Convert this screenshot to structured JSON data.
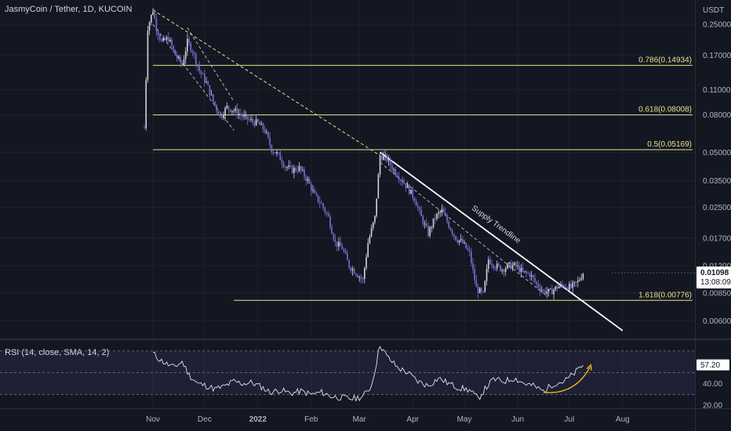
{
  "header": {
    "title": "JasmyCoin / Tether, 1D, KUCOIN"
  },
  "chart_data": {
    "type": "candlestick",
    "currency_label": "USDT",
    "y_scale": "log",
    "ylim": [
      0.0048,
      0.34
    ],
    "y_ticks": [
      "0.25000",
      "0.17000",
      "0.11000",
      "0.08000",
      "0.05000",
      "0.03500",
      "0.02500",
      "0.01700",
      "0.01200",
      "0.00850",
      "0.00600"
    ],
    "x_ticks": [
      "Nov",
      "Dec",
      "2022",
      "Feb",
      "Mar",
      "Apr",
      "May",
      "Jun",
      "Jul",
      "Aug"
    ],
    "x_tick_dates": [
      "2021-11-01",
      "2021-12-01",
      "2022-01-01",
      "2022-02-01",
      "2022-03-01",
      "2022-04-01",
      "2022-05-01",
      "2022-06-01",
      "2022-07-01",
      "2022-08-01"
    ],
    "path": [
      [
        "2021-10-27",
        0.068
      ],
      [
        "2021-10-29",
        0.24
      ],
      [
        "2021-11-01",
        0.3
      ],
      [
        "2021-11-03",
        0.24
      ],
      [
        "2021-11-06",
        0.2
      ],
      [
        "2021-11-10",
        0.21
      ],
      [
        "2021-11-14",
        0.17
      ],
      [
        "2021-11-18",
        0.15
      ],
      [
        "2021-11-21",
        0.2
      ],
      [
        "2021-11-24",
        0.18
      ],
      [
        "2021-11-28",
        0.14
      ],
      [
        "2021-12-02",
        0.12
      ],
      [
        "2021-12-06",
        0.095
      ],
      [
        "2021-12-10",
        0.078
      ],
      [
        "2021-12-14",
        0.088
      ],
      [
        "2021-12-18",
        0.085
      ],
      [
        "2021-12-22",
        0.08
      ],
      [
        "2021-12-27",
        0.075
      ],
      [
        "2022-01-01",
        0.072
      ],
      [
        "2022-01-05",
        0.066
      ],
      [
        "2022-01-09",
        0.052
      ],
      [
        "2022-01-13",
        0.048
      ],
      [
        "2022-01-17",
        0.042
      ],
      [
        "2022-01-21",
        0.04
      ],
      [
        "2022-01-25",
        0.041
      ],
      [
        "2022-01-30",
        0.035
      ],
      [
        "2022-02-03",
        0.029
      ],
      [
        "2022-02-07",
        0.026
      ],
      [
        "2022-02-11",
        0.022
      ],
      [
        "2022-02-15",
        0.016
      ],
      [
        "2022-02-19",
        0.015
      ],
      [
        "2022-02-23",
        0.012
      ],
      [
        "2022-02-27",
        0.011
      ],
      [
        "2022-03-03",
        0.01
      ],
      [
        "2022-03-06",
        0.016
      ],
      [
        "2022-03-10",
        0.022
      ],
      [
        "2022-03-13",
        0.048
      ],
      [
        "2022-03-17",
        0.046
      ],
      [
        "2022-03-21",
        0.04
      ],
      [
        "2022-03-25",
        0.036
      ],
      [
        "2022-03-29",
        0.032
      ],
      [
        "2022-04-02",
        0.028
      ],
      [
        "2022-04-06",
        0.022
      ],
      [
        "2022-04-10",
        0.018
      ],
      [
        "2022-04-14",
        0.022
      ],
      [
        "2022-04-18",
        0.024
      ],
      [
        "2022-04-22",
        0.02
      ],
      [
        "2022-04-26",
        0.017
      ],
      [
        "2022-04-30",
        0.016
      ],
      [
        "2022-05-04",
        0.014
      ],
      [
        "2022-05-08",
        0.009
      ],
      [
        "2022-05-12",
        0.0083
      ],
      [
        "2022-05-15",
        0.013
      ],
      [
        "2022-05-19",
        0.012
      ],
      [
        "2022-05-23",
        0.0115
      ],
      [
        "2022-05-27",
        0.012
      ],
      [
        "2022-05-31",
        0.012
      ],
      [
        "2022-06-04",
        0.011
      ],
      [
        "2022-06-08",
        0.0108
      ],
      [
        "2022-06-12",
        0.0095
      ],
      [
        "2022-06-16",
        0.0087
      ],
      [
        "2022-06-20",
        0.0086
      ],
      [
        "2022-06-24",
        0.0092
      ],
      [
        "2022-06-28",
        0.0094
      ],
      [
        "2022-07-02",
        0.0091
      ],
      [
        "2022-07-06",
        0.0098
      ],
      [
        "2022-07-09",
        0.01098
      ]
    ],
    "fib_levels": [
      {
        "label": "0.786(0.14934)",
        "value": 0.14934,
        "from": "2021-11-01"
      },
      {
        "label": "0.618(0.08008)",
        "value": 0.08008,
        "from": "2021-11-01"
      },
      {
        "label": "0.5(0.05169)",
        "value": 0.05169,
        "from": "2021-11-01"
      },
      {
        "label": "1.618(0.00776)",
        "value": 0.00776,
        "from": "2021-12-18"
      }
    ],
    "trendlines": [
      {
        "style": "dashed",
        "color": "#e8e38a",
        "from": [
          "2021-11-01",
          0.3
        ],
        "to": [
          "2022-03-13",
          0.048
        ]
      },
      {
        "style": "dashed",
        "color": "#b2b5be",
        "from": [
          "2021-11-01",
          0.25
        ],
        "to": [
          "2021-12-18",
          0.066
        ]
      },
      {
        "style": "dashed",
        "color": "#b2b5be",
        "from": [
          "2021-11-21",
          0.24
        ],
        "to": [
          "2021-12-18",
          0.095
        ]
      },
      {
        "style": "dashed",
        "color": "#b2b5be",
        "from": [
          "2022-03-13",
          0.044
        ],
        "to": [
          "2022-06-18",
          0.0082
        ]
      },
      {
        "style": "solid",
        "color": "#ffffff",
        "from": [
          "2022-03-13",
          0.05
        ],
        "to": [
          "2022-08-01",
          0.0053
        ]
      }
    ],
    "trendline_label": {
      "text": "Supply Trendline",
      "at": [
        "2022-05-05",
        0.0245
      ]
    },
    "last_price": "0.01098",
    "countdown": "13:08:09",
    "rsi": {
      "title": "RSI (14, close, SMA, 14, 2)",
      "current_value": "57.20",
      "y_ticks": [
        "40.00",
        "20.00"
      ],
      "levels": [
        70,
        50,
        30
      ],
      "ylim": [
        18,
        80
      ],
      "values": [
        [
          "2021-11-01",
          68
        ],
        [
          "2021-11-05",
          62
        ],
        [
          "2021-11-09",
          58
        ],
        [
          "2021-11-13",
          55
        ],
        [
          "2021-11-18",
          60
        ],
        [
          "2021-11-22",
          48
        ],
        [
          "2021-11-27",
          40
        ],
        [
          "2021-12-02",
          38
        ],
        [
          "2021-12-07",
          35
        ],
        [
          "2021-12-12",
          37
        ],
        [
          "2021-12-18",
          42
        ],
        [
          "2021-12-23",
          40
        ],
        [
          "2021-12-28",
          41
        ],
        [
          "2022-01-03",
          37
        ],
        [
          "2022-01-08",
          32
        ],
        [
          "2022-01-14",
          34
        ],
        [
          "2022-01-20",
          31
        ],
        [
          "2022-01-26",
          33
        ],
        [
          "2022-02-01",
          30
        ],
        [
          "2022-02-07",
          32
        ],
        [
          "2022-02-13",
          28
        ],
        [
          "2022-02-19",
          27
        ],
        [
          "2022-02-25",
          26
        ],
        [
          "2022-03-03",
          28
        ],
        [
          "2022-03-08",
          38
        ],
        [
          "2022-03-11",
          60
        ],
        [
          "2022-03-13",
          76
        ],
        [
          "2022-03-17",
          65
        ],
        [
          "2022-03-23",
          55
        ],
        [
          "2022-03-29",
          50
        ],
        [
          "2022-04-04",
          42
        ],
        [
          "2022-04-10",
          38
        ],
        [
          "2022-04-16",
          45
        ],
        [
          "2022-04-22",
          40
        ],
        [
          "2022-04-28",
          36
        ],
        [
          "2022-05-04",
          34
        ],
        [
          "2022-05-09",
          26
        ],
        [
          "2022-05-13",
          35
        ],
        [
          "2022-05-18",
          44
        ],
        [
          "2022-05-24",
          42
        ],
        [
          "2022-05-30",
          45
        ],
        [
          "2022-06-05",
          40
        ],
        [
          "2022-06-10",
          38
        ],
        [
          "2022-06-16",
          33
        ],
        [
          "2022-06-22",
          40
        ],
        [
          "2022-06-28",
          42
        ],
        [
          "2022-07-03",
          48
        ],
        [
          "2022-07-09",
          57.2
        ]
      ]
    }
  }
}
